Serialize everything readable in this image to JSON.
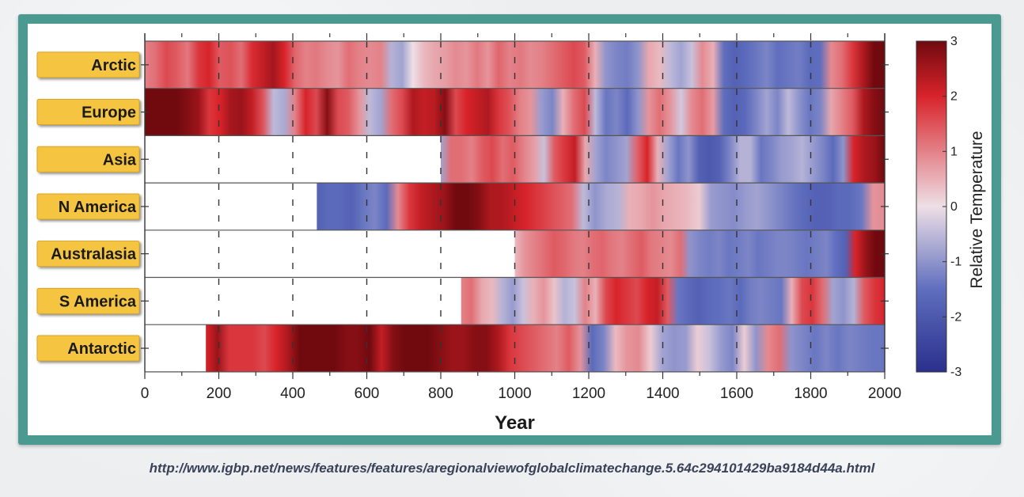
{
  "chart_data": {
    "type": "heatmap",
    "xlabel": "Year",
    "xlim": [
      0,
      2000
    ],
    "x_ticks": [
      "0",
      "200",
      "400",
      "600",
      "800",
      "1000",
      "1200",
      "1400",
      "1600",
      "1800",
      "2000"
    ],
    "colorbar_label": "Relative Temperature",
    "colorbar_range": [
      -3,
      3
    ],
    "colorbar_ticks": [
      "3",
      "2",
      "1",
      "0",
      "-1",
      "-2",
      "-3"
    ],
    "colors": {
      "cold": "#2a2f8c",
      "neutral": "#eedfe6",
      "warm": "#d8232a",
      "hot": "#700a0f"
    },
    "series": [
      {
        "name": "Arctic",
        "start": 0,
        "values": [
          1.0,
          1.2,
          1.6,
          1.4,
          1.1,
          1.8,
          2.0,
          1.4,
          1.5,
          1.2,
          1.9,
          2.2,
          2.5,
          2.0,
          1.3,
          1.0,
          1.1,
          0.9,
          0.8,
          1.2,
          1.0,
          0.9,
          1.0,
          -0.6,
          -0.8,
          0.0,
          0.4,
          0.6,
          0.7,
          0.9,
          0.8,
          1.1,
          0.8,
          1.3,
          1.0,
          1.1,
          0.9,
          1.0,
          1.2,
          1.4,
          1.6,
          1.4,
          0.5,
          -1.0,
          -1.2,
          -1.3,
          -1.0,
          0.6,
          0.4,
          -0.5,
          -0.8,
          -0.4,
          0.9,
          0.5,
          -1.5,
          -1.8,
          -1.6,
          -1.4,
          -1.2,
          -1.5,
          -1.4,
          -1.3,
          -1.6,
          -1.5,
          0.9,
          1.2,
          1.8,
          2.4,
          3.0,
          3.0
        ]
      },
      {
        "name": "Europe",
        "start": 0,
        "values": [
          3.0,
          3.0,
          3.0,
          3.0,
          2.8,
          2.6,
          1.8,
          2.0,
          2.5,
          2.6,
          2.2,
          1.5,
          -0.5,
          -0.7,
          1.0,
          2.0,
          1.6,
          2.8,
          1.6,
          1.4,
          0.8,
          -0.5,
          -0.8,
          1.2,
          1.6,
          2.4,
          2.2,
          2.3,
          2.8,
          1.6,
          2.0,
          2.2,
          2.4,
          1.8,
          1.5,
          1.0,
          0.8,
          -0.9,
          -1.2,
          0.5,
          1.2,
          1.6,
          -0.5,
          -1.4,
          -1.2,
          -1.6,
          -1.0,
          0.8,
          1.2,
          0.8,
          -0.3,
          0.9,
          1.2,
          0.7,
          -1.5,
          -1.8,
          -1.6,
          -1.2,
          -0.8,
          -1.2,
          -0.5,
          -1.0,
          -1.4,
          -1.2,
          0.6,
          1.0,
          1.4,
          2.4,
          2.8,
          3.0
        ]
      },
      {
        "name": "Asia",
        "start": 800,
        "values": [
          -0.8,
          1.2,
          1.2,
          1.0,
          1.4,
          1.6,
          1.2,
          1.4,
          1.0,
          0.7,
          -0.4,
          1.4,
          1.8,
          2.2,
          0.6,
          -0.8,
          -1.2,
          -1.0,
          -0.8,
          1.3,
          2.0,
          0.5,
          -0.8,
          -1.4,
          -1.0,
          -1.8,
          -2.0,
          -1.8,
          -1.2,
          -0.6,
          -0.6,
          -1.4,
          -1.2,
          -0.9,
          -0.8,
          -0.6,
          -0.9,
          -1.2,
          -1.6,
          -1.0,
          2.0,
          2.4,
          2.6,
          3.0
        ]
      },
      {
        "name": "N America",
        "start": 465,
        "values": [
          -1.8,
          -1.6,
          -1.6,
          -1.8,
          -1.4,
          -1.2,
          -1.6,
          0.9,
          1.8,
          2.2,
          2.4,
          2.6,
          3.0,
          3.0,
          2.8,
          2.4,
          2.4,
          2.2,
          2.0,
          1.8,
          1.6,
          1.4,
          1.2,
          -0.5,
          -1.0,
          -0.7,
          -0.6,
          0.5,
          0.6,
          0.8,
          0.6,
          0.5,
          0.4,
          0.2,
          -0.9,
          -1.0,
          -1.1,
          -0.9,
          -0.8,
          -1.0,
          -1.2,
          -1.4,
          -1.6,
          -1.8,
          -1.8,
          -1.6,
          -1.6,
          -1.4,
          0.8,
          0.9
        ]
      },
      {
        "name": "Australasia",
        "start": 1000,
        "values": [
          0.4,
          0.8,
          1.0,
          1.2,
          1.4,
          1.3,
          1.1,
          1.0,
          1.2,
          1.3,
          1.1,
          1.0,
          1.2,
          1.4,
          1.1,
          1.0,
          0.9,
          1.2,
          -1.0,
          -1.2,
          -1.3,
          -1.2,
          -1.4,
          -1.3,
          -1.2,
          -1.4,
          -1.3,
          -1.2,
          -1.2,
          -1.3,
          -1.4,
          -1.3,
          -1.2,
          -1.5,
          -1.8,
          2.0,
          2.6,
          3.0,
          3.0
        ]
      },
      {
        "name": "S America",
        "start": 855,
        "values": [
          1.0,
          1.2,
          0.6,
          0.4,
          -0.6,
          -0.9,
          -0.4,
          0.5,
          0.8,
          0.3,
          -0.6,
          -0.4,
          1.0,
          0.5,
          1.6,
          2.0,
          1.8,
          1.6,
          2.0,
          2.2,
          1.4,
          -1.4,
          -1.6,
          -1.8,
          -1.6,
          -1.5,
          -1.4,
          -1.6,
          -1.3,
          -1.2,
          -1.3,
          -1.4,
          0.5,
          1.6,
          1.8,
          1.2,
          -0.8,
          -1.0,
          -0.6,
          1.4,
          1.8,
          2.0
        ]
      },
      {
        "name": "Antarctic",
        "start": 165,
        "values": [
          2.0,
          2.6,
          1.8,
          1.8,
          1.8,
          1.6,
          2.0,
          2.4,
          3.0,
          3.0,
          3.0,
          3.0,
          2.8,
          2.8,
          3.0,
          2.2,
          2.8,
          3.0,
          3.0,
          3.0,
          2.8,
          2.6,
          2.6,
          2.8,
          2.8,
          2.4,
          1.8,
          1.6,
          1.4,
          1.2,
          1.0,
          1.4,
          0.8,
          -1.6,
          -1.2,
          0.4,
          0.8,
          0.9,
          0.2,
          -0.8,
          -1.0,
          -0.9,
          0.2,
          -0.4,
          -0.9,
          -1.2,
          0.2,
          -1.0,
          0.9,
          1.2,
          -1.0,
          -1.2,
          -1.4,
          -1.2,
          -1.4,
          -1.2,
          -1.3,
          -1.4,
          -1.4
        ]
      }
    ]
  },
  "source_url": "http://www.igbp.net/news/features/features/aregionalviewofglobalclimatechange.5.64c294101429ba9184d44a.html"
}
